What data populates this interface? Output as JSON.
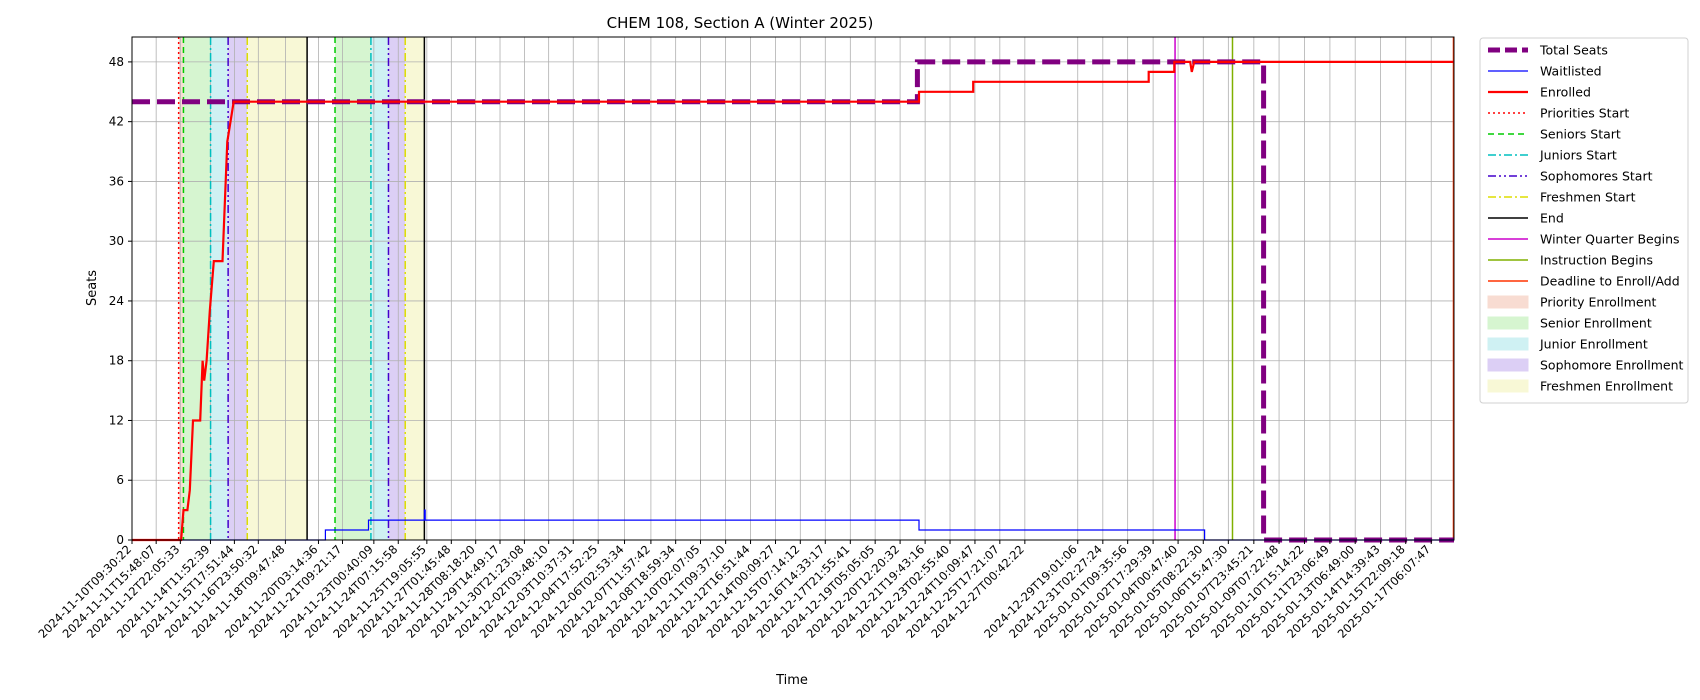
{
  "chart_data": {
    "type": "line",
    "title": "CHEM 108, Section A (Winter 2025)",
    "xlabel": "Time",
    "ylabel": "Seats",
    "ylim": [
      0,
      50.5
    ],
    "xlim": [
      "2024-11-10T09:30:22",
      "2025-01-18T10:40:00"
    ],
    "grid": true,
    "legend_position": "outside-right",
    "y_ticks": [
      0,
      6,
      12,
      18,
      24,
      30,
      36,
      42,
      48
    ],
    "x_ticks": [
      "2024-11-10T09:30:22",
      "2024-11-11T15:48:07",
      "2024-11-12T22:05:33",
      "2024-11-14T11:52:39",
      "2024-11-15T17:51:44",
      "2024-11-16T23:50:32",
      "2024-11-18T09:47:48",
      "2024-11-20T03:14:36",
      "2024-11-21T09:21:17",
      "2024-11-23T00:40:09",
      "2024-11-24T07:15:58",
      "2024-11-25T19:05:55",
      "2024-11-27T01:45:48",
      "2024-11-28T08:18:20",
      "2024-11-29T14:49:17",
      "2024-11-30T21:23:08",
      "2024-12-02T03:48:10",
      "2024-12-03T10:37:31",
      "2024-12-04T17:52:25",
      "2024-12-06T02:53:34",
      "2024-12-07T11:57:42",
      "2024-12-08T18:59:34",
      "2024-12-10T02:07:05",
      "2024-12-11T09:37:10",
      "2024-12-12T16:51:44",
      "2024-12-14T00:09:27",
      "2024-12-15T07:14:12",
      "2024-12-16T14:33:17",
      "2024-12-17T21:55:41",
      "2024-12-19T05:05:05",
      "2024-12-20T12:20:32",
      "2024-12-21T19:43:16",
      "2024-12-23T02:55:40",
      "2024-12-24T10:09:47",
      "2024-12-25T17:21:07",
      "2024-12-27T00:42:22",
      "2024-12-29T19:01:06",
      "2024-12-31T02:27:24",
      "2025-01-01T09:35:56",
      "2025-01-02T17:29:39",
      "2025-01-04T00:47:40",
      "2025-01-05T08:22:30",
      "2025-01-06T15:47:30",
      "2025-01-07T23:45:21",
      "2025-01-09T07:22:48",
      "2025-01-10T15:14:22",
      "2025-01-11T23:06:49",
      "2025-01-13T06:49:00",
      "2025-01-14T14:39:43",
      "2025-01-15T22:09:18",
      "2025-01-17T06:07:47"
    ],
    "series": [
      {
        "name": "Total Seats",
        "color": "#800080",
        "style": "dashed-thick",
        "points": [
          [
            "2024-11-10T09:30:22",
            44
          ],
          [
            "2024-12-21T10:00:00",
            44
          ],
          [
            "2024-12-21T10:00:00",
            48
          ],
          [
            "2025-01-08T12:00:00",
            48
          ],
          [
            "2025-01-08T12:00:00",
            0
          ],
          [
            "2025-01-18T10:40:00",
            0
          ]
        ]
      },
      {
        "name": "Waitlisted",
        "color": "#0000ff",
        "style": "solid-thin",
        "points": [
          [
            "2024-11-10T09:30:22",
            0
          ],
          [
            "2024-11-20T12:00:00",
            0
          ],
          [
            "2024-11-20T12:00:00",
            1
          ],
          [
            "2024-11-22T18:00:00",
            1
          ],
          [
            "2024-11-22T18:00:00",
            2
          ],
          [
            "2024-11-25T16:00:00",
            2
          ],
          [
            "2024-11-25T16:00:00",
            3
          ],
          [
            "2024-11-25T17:00:00",
            3
          ],
          [
            "2024-11-25T17:00:00",
            2
          ],
          [
            "2024-12-21T12:00:00",
            2
          ],
          [
            "2024-12-21T12:00:00",
            1
          ],
          [
            "2025-01-05T10:00:00",
            1
          ],
          [
            "2025-01-05T10:00:00",
            0
          ],
          [
            "2025-01-18T10:40:00",
            0
          ]
        ]
      },
      {
        "name": "Enrolled",
        "color": "#ff0000",
        "style": "solid-thick",
        "points": [
          [
            "2024-11-10T09:30:22",
            0
          ],
          [
            "2024-11-12T23:00:00",
            0
          ],
          [
            "2024-11-13T02:00:00",
            3
          ],
          [
            "2024-11-13T07:00:00",
            3
          ],
          [
            "2024-11-13T10:00:00",
            5
          ],
          [
            "2024-11-13T14:00:00",
            12
          ],
          [
            "2024-11-13T23:00:00",
            12
          ],
          [
            "2024-11-14T02:00:00",
            18
          ],
          [
            "2024-11-14T04:00:00",
            16
          ],
          [
            "2024-11-14T07:00:00",
            18
          ],
          [
            "2024-11-14T11:00:00",
            23
          ],
          [
            "2024-11-14T16:00:00",
            28
          ],
          [
            "2024-11-15T03:00:00",
            28
          ],
          [
            "2024-11-15T09:00:00",
            40
          ],
          [
            "2024-11-15T17:00:00",
            44
          ],
          [
            "2024-12-21T12:00:00",
            44
          ],
          [
            "2024-12-21T12:00:00",
            45
          ],
          [
            "2024-12-24T08:00:00",
            45
          ],
          [
            "2024-12-24T08:00:00",
            46
          ],
          [
            "2025-01-02T12:00:00",
            46
          ],
          [
            "2025-01-02T12:00:00",
            47
          ],
          [
            "2025-01-03T20:00:00",
            47
          ],
          [
            "2025-01-03T20:00:00",
            48
          ],
          [
            "2025-01-04T16:00:00",
            48
          ],
          [
            "2025-01-04T18:00:00",
            47
          ],
          [
            "2025-01-04T21:00:00",
            48
          ],
          [
            "2025-01-18T10:40:00",
            48
          ]
        ]
      }
    ],
    "vertical_lines": [
      {
        "name": "Priorities Start",
        "color": "#ff0000",
        "style": "dotted",
        "x": [
          "2024-11-12T20:00:00"
        ]
      },
      {
        "name": "Seniors Start",
        "color": "#00cc00",
        "style": "dashed",
        "x": [
          "2024-11-13T02:00:00",
          "2024-11-21T00:00:00"
        ]
      },
      {
        "name": "Juniors Start",
        "color": "#00bfbf",
        "style": "dashdot",
        "x": [
          "2024-11-14T12:00:00",
          "2024-11-22T21:00:00"
        ]
      },
      {
        "name": "Sophomores Start",
        "color": "#4400cc",
        "style": "dashdotdot",
        "x": [
          "2024-11-15T10:00:00",
          "2024-11-23T19:00:00"
        ]
      },
      {
        "name": "Freshmen Start",
        "color": "#dddd00",
        "style": "dashdot",
        "x": [
          "2024-11-16T10:00:00",
          "2024-11-24T16:00:00"
        ]
      },
      {
        "name": "End",
        "color": "#000000",
        "style": "solid",
        "x": [
          "2024-11-19T13:00:00",
          "2024-11-25T16:00:00"
        ]
      },
      {
        "name": "Winter Quarter Begins",
        "color": "#cc00cc",
        "style": "solid",
        "x": [
          "2025-01-03T21:00:00"
        ]
      },
      {
        "name": "Instruction Begins",
        "color": "#80b000",
        "style": "solid",
        "x": [
          "2025-01-06T21:00:00"
        ]
      },
      {
        "name": "Deadline to Enroll/Add",
        "color": "#ff3300",
        "style": "solid",
        "x": [
          "2025-01-18T10:00:00"
        ]
      }
    ],
    "shaded_regions": [
      {
        "name": "Priority Enrollment",
        "color": "#f8dcd2",
        "ranges": [
          [
            "2024-11-12T20:00:00",
            "2024-11-13T02:00:00"
          ]
        ]
      },
      {
        "name": "Senior Enrollment",
        "color": "#d6f5d0",
        "ranges": [
          [
            "2024-11-13T02:00:00",
            "2024-11-14T12:00:00"
          ],
          [
            "2024-11-21T00:00:00",
            "2024-11-22T21:00:00"
          ]
        ]
      },
      {
        "name": "Junior Enrollment",
        "color": "#cff1f3",
        "ranges": [
          [
            "2024-11-14T12:00:00",
            "2024-11-15T10:00:00"
          ],
          [
            "2024-11-22T21:00:00",
            "2024-11-23T19:00:00"
          ]
        ]
      },
      {
        "name": "Sophomore Enrollment",
        "color": "#dccff5",
        "ranges": [
          [
            "2024-11-15T10:00:00",
            "2024-11-16T10:00:00"
          ],
          [
            "2024-11-23T19:00:00",
            "2024-11-24T16:00:00"
          ]
        ]
      },
      {
        "name": "Freshmen Enrollment",
        "color": "#f8f8d6",
        "ranges": [
          [
            "2024-11-16T10:00:00",
            "2024-11-19T13:00:00"
          ],
          [
            "2024-11-24T16:00:00",
            "2024-11-25T16:00:00"
          ]
        ]
      }
    ]
  }
}
